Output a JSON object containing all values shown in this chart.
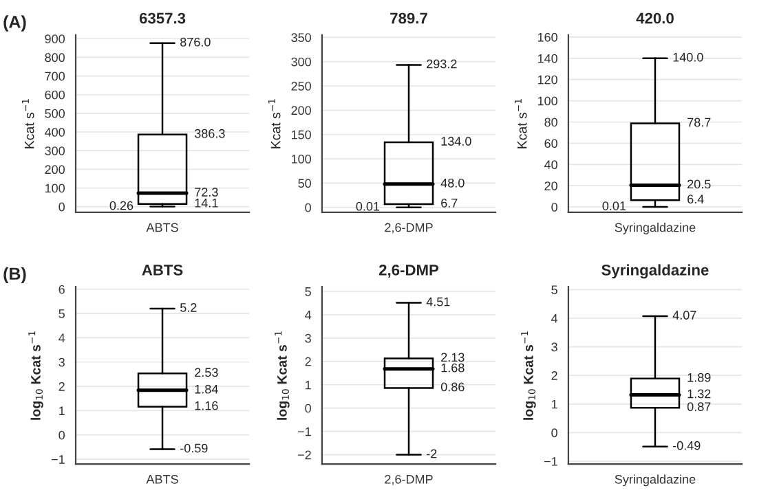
{
  "chart_data": [
    {
      "type": "box",
      "title": "6357.3",
      "ylabel": "Kcat s$^{−1}$",
      "categories": [
        "ABTS"
      ],
      "annotations": [
        "(A)"
      ],
      "boxes": [
        {
          "low": 0.26,
          "q1": 14.1,
          "median": 72.3,
          "q3": 386.3,
          "high": 876.0
        }
      ],
      "value_labels": [
        [
          "0.26",
          "14.1",
          "72.3",
          "386.3",
          "876.0"
        ]
      ],
      "ylim": [
        -30,
        920
      ],
      "yticks": [
        0,
        100,
        200,
        300,
        400,
        500,
        600,
        700,
        800,
        900
      ],
      "grid": "y"
    },
    {
      "type": "box",
      "title": "789.7",
      "ylabel": "Kcat s$^{−1}$",
      "categories": [
        "2,6-DMP"
      ],
      "boxes": [
        {
          "low": 0.01,
          "q1": 6.7,
          "median": 48.0,
          "q3": 134.0,
          "high": 293.2
        }
      ],
      "value_labels": [
        [
          "0.01",
          "6.7",
          "48.0",
          "134.0",
          "293.2"
        ]
      ],
      "ylim": [
        -10,
        355
      ],
      "yticks": [
        0,
        50,
        100,
        150,
        200,
        250,
        300,
        350
      ],
      "grid": "y"
    },
    {
      "type": "box",
      "title": "420.0",
      "ylabel": "Kcat s$^{−1}$",
      "categories": [
        "Syringaldazine"
      ],
      "boxes": [
        {
          "low": 0.01,
          "q1": 6.4,
          "median": 20.5,
          "q3": 78.7,
          "high": 140.0
        }
      ],
      "value_labels": [
        [
          "0.01",
          "6.4",
          "20.5",
          "78.7",
          "140.0"
        ]
      ],
      "ylim": [
        -5,
        162
      ],
      "yticks": [
        0,
        20,
        40,
        60,
        80,
        100,
        120,
        140,
        160
      ],
      "grid": "y"
    },
    {
      "type": "box",
      "title": "ABTS",
      "ylabel": "log$_{10}$ Kcat s$^{−1}$",
      "categories": [
        "ABTS"
      ],
      "annotations": [
        "(B)"
      ],
      "boxes": [
        {
          "low": -0.59,
          "q1": 1.16,
          "median": 1.84,
          "q3": 2.53,
          "high": 5.2
        }
      ],
      "value_labels": [
        [
          "-0.59",
          "1.16",
          "1.84",
          "2.53",
          "5.2"
        ]
      ],
      "ylim": [
        -1.2,
        6.1
      ],
      "yticks": [
        -1,
        0,
        1,
        2,
        3,
        4,
        5,
        6
      ],
      "grid": "y"
    },
    {
      "type": "box",
      "title": "2,6-DMP",
      "ylabel": "log$_{10}$ Kcat s$^{−1}$",
      "categories": [
        "2,6-DMP"
      ],
      "boxes": [
        {
          "low": -2,
          "q1": 0.86,
          "median": 1.68,
          "q3": 2.13,
          "high": 4.51
        }
      ],
      "value_labels": [
        [
          "-2",
          "0.86",
          "1.68",
          "2.13",
          "4.51"
        ]
      ],
      "ylim": [
        -2.4,
        5.2
      ],
      "yticks": [
        -2,
        -1,
        0,
        1,
        2,
        3,
        4,
        5
      ],
      "grid": "y"
    },
    {
      "type": "box",
      "title": "Syringaldazine",
      "ylabel": "log$_{10}$ Kcat s$^{−1}$",
      "categories": [
        "Syringaldazine"
      ],
      "boxes": [
        {
          "low": -0.49,
          "q1": 0.87,
          "median": 1.32,
          "q3": 1.89,
          "high": 4.07
        }
      ],
      "value_labels": [
        [
          "-0.49",
          "0.87",
          "1.32",
          "1.89",
          "4.07"
        ]
      ],
      "ylim": [
        -1.1,
        5.1
      ],
      "yticks": [
        -1,
        0,
        1,
        2,
        3,
        4,
        5
      ],
      "grid": "y"
    }
  ]
}
